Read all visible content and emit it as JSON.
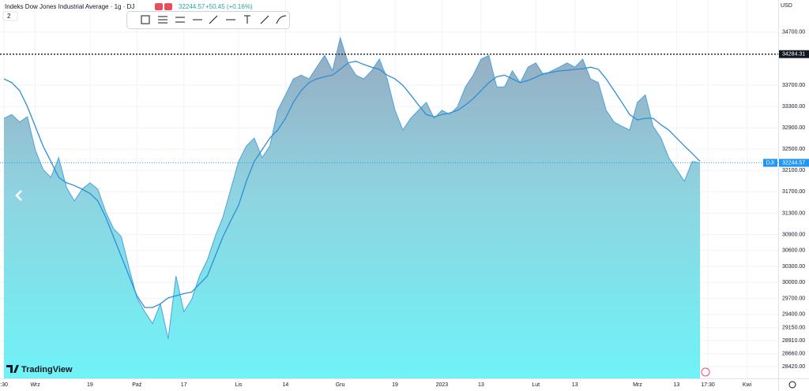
{
  "header": {
    "symbol": "Indeks Dow Jones Industrial Average · 1g · DJ",
    "change": "+50.45 (+0.16%)",
    "collapse": "2",
    "currency": "USD",
    "logo": "TradingView"
  },
  "chart_data": {
    "type": "area",
    "categories": [
      ":30",
      null,
      null,
      null,
      "Wrz",
      null,
      null,
      null,
      null,
      null,
      null,
      "19",
      null,
      null,
      null,
      null,
      null,
      "Paź",
      null,
      null,
      null,
      null,
      null,
      "17",
      null,
      null,
      null,
      null,
      null,
      null,
      "Lis",
      null,
      null,
      null,
      null,
      null,
      "14",
      null,
      null,
      null,
      null,
      null,
      null,
      "Gru",
      null,
      null,
      null,
      null,
      null,
      null,
      "19",
      null,
      null,
      null,
      null,
      null,
      "2023",
      null,
      null,
      null,
      null,
      "13",
      null,
      null,
      null,
      null,
      null,
      null,
      "Lut",
      null,
      null,
      null,
      null,
      "13",
      null,
      null,
      null,
      null,
      null,
      null,
      null,
      "Mrz",
      null,
      null,
      null,
      null,
      "13",
      null,
      null,
      null,
      "17:30",
      null,
      null,
      null,
      null,
      "Kwi",
      null,
      null,
      null
    ],
    "series": [
      {
        "name": "DJI",
        "color": "#4aa3df",
        "values": [
          33080,
          33150,
          33010,
          33110,
          32490,
          32120,
          31970,
          32340,
          31780,
          31530,
          31750,
          31870,
          31750,
          31330,
          31010,
          30860,
          30270,
          29710,
          29450,
          29230,
          29600,
          28940,
          30120,
          29450,
          29680,
          30120,
          30420,
          30860,
          31230,
          31750,
          32270,
          32560,
          32710,
          32340,
          32560,
          33230,
          33520,
          33820,
          33890,
          33820,
          34040,
          34260,
          33970,
          34590,
          34120,
          33890,
          33820,
          33970,
          34190,
          33820,
          33230,
          32860,
          33080,
          33230,
          33380,
          33080,
          33230,
          33150,
          33300,
          33670,
          33890,
          34190,
          34260,
          33670,
          33670,
          33970,
          33750,
          34040,
          34120,
          33890,
          33970,
          34040,
          34120,
          34040,
          34190,
          33820,
          33750,
          33230,
          33010,
          32930,
          32860,
          33380,
          33520,
          32930,
          32710,
          32340,
          32120,
          31900,
          32270,
          32244.57,
          null,
          null,
          null,
          null,
          null,
          null,
          null,
          null,
          null
        ]
      },
      {
        "color": "#2e8fd6",
        "values": [
          33820,
          33750,
          33600,
          33300,
          32930,
          32560,
          32270,
          31970,
          31870,
          31820,
          31750,
          31670,
          31530,
          31230,
          30860,
          30490,
          30120,
          29750,
          29530,
          29530,
          29600,
          29710,
          29750,
          29790,
          29820,
          29970,
          30120,
          30490,
          30860,
          31160,
          31450,
          31900,
          32270,
          32490,
          32710,
          32860,
          33080,
          33380,
          33600,
          33750,
          33820,
          33860,
          33890,
          34000,
          34120,
          34150,
          34090,
          34040,
          34000,
          33890,
          33820,
          33700,
          33520,
          33330,
          33150,
          33110,
          33150,
          33180,
          33230,
          33330,
          33450,
          33600,
          33750,
          33860,
          33890,
          33820,
          33750,
          33790,
          33850,
          33920,
          33940,
          33970,
          33980,
          34000,
          34010,
          34040,
          34000,
          33820,
          33600,
          33380,
          33150,
          33050,
          33080,
          33080,
          32960,
          32860,
          32710,
          32560,
          32420,
          32270,
          null,
          null,
          null,
          null,
          null,
          null,
          null,
          null,
          null
        ]
      }
    ],
    "last_value": 32244.57,
    "price_line": 34284.31,
    "ylim": [
      28200,
      35300
    ],
    "yticks": [
      {
        "value": 34700,
        "label": "34700.00"
      },
      {
        "value": 33700,
        "label": "33700.00"
      },
      {
        "value": 33300,
        "label": "33300.00"
      },
      {
        "value": 32900,
        "label": "32900.00"
      },
      {
        "value": 32500,
        "label": "32500.00"
      },
      {
        "value": 32100,
        "label": "32100.00"
      },
      {
        "value": 31700,
        "label": "31700.00"
      },
      {
        "value": 31300,
        "label": "31300.00"
      },
      {
        "value": 30900,
        "label": "30900.00"
      },
      {
        "value": 30600,
        "label": "30600.00"
      },
      {
        "value": 30300,
        "label": "30300.00"
      },
      {
        "value": 30000,
        "label": "30000.00"
      },
      {
        "value": 29700,
        "label": "29700.00"
      },
      {
        "value": 29400,
        "label": "29400.00"
      },
      {
        "value": 29150,
        "label": "29150.00"
      },
      {
        "value": 28910,
        "label": "28910.00"
      },
      {
        "value": 28660,
        "label": "28660.00"
      },
      {
        "value": 28420,
        "label": "28420.00"
      }
    ],
    "grid": true
  }
}
